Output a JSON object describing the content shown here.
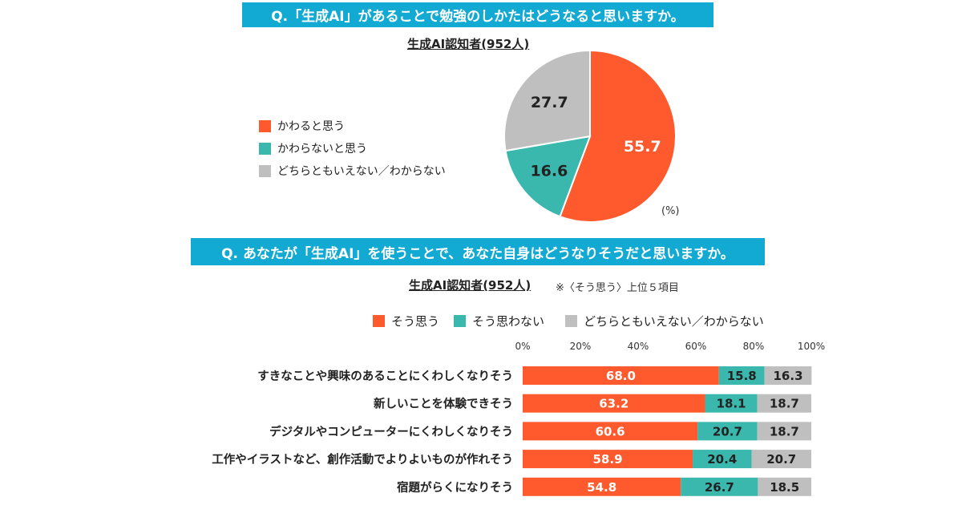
{
  "colors": {
    "header": "#12A9D2",
    "agree": "#FF5A2E",
    "disagree": "#3BB8AE",
    "unsure": "#BFBFBF"
  },
  "chart_data": [
    {
      "type": "pie",
      "title": "Q.「生成AI」があることで勉強のしかたはどうなると思いますか。",
      "subtitle": "生成AI認知者(952人)",
      "unit": "(%)",
      "legend_position": "left",
      "slices": [
        {
          "label": "かわると思う",
          "value": 55.7,
          "color": "#FF5A2E"
        },
        {
          "label": "かわらないと思う",
          "value": 16.6,
          "color": "#3BB8AE"
        },
        {
          "label": "どちらともいえない／わからない",
          "value": 27.7,
          "color": "#BFBFBF"
        }
      ]
    },
    {
      "type": "bar",
      "orientation": "horizontal-stacked",
      "title": "Q. あなたが「生成AI」を使うことで、あなた自身はどうなりそうだと思いますか。",
      "subtitle": "生成AI認知者(952人)",
      "note": "※〈そう思う〉上位５項目",
      "legend_position": "top",
      "xlim": [
        0,
        100
      ],
      "ticks": [
        "0%",
        "20%",
        "40%",
        "60%",
        "80%",
        "100%"
      ],
      "categories": [
        "すきなことや興味のあることにくわしくなりそう",
        "新しいことを体験できそう",
        "デジタルやコンピューターにくわしくなりそう",
        "工作やイラストなど、創作活動でよりよいものが作れそう",
        "宿題がらくになりそう"
      ],
      "series": [
        {
          "name": "そう思う",
          "color": "#FF5A2E",
          "values": [
            68.0,
            63.2,
            60.6,
            58.9,
            54.8
          ]
        },
        {
          "name": "そう思わない",
          "color": "#3BB8AE",
          "values": [
            15.8,
            18.1,
            20.7,
            20.4,
            26.7
          ]
        },
        {
          "name": "どちらともいえない／わからない",
          "color": "#BFBFBF",
          "values": [
            16.3,
            18.7,
            18.7,
            20.7,
            18.5
          ]
        }
      ]
    }
  ]
}
